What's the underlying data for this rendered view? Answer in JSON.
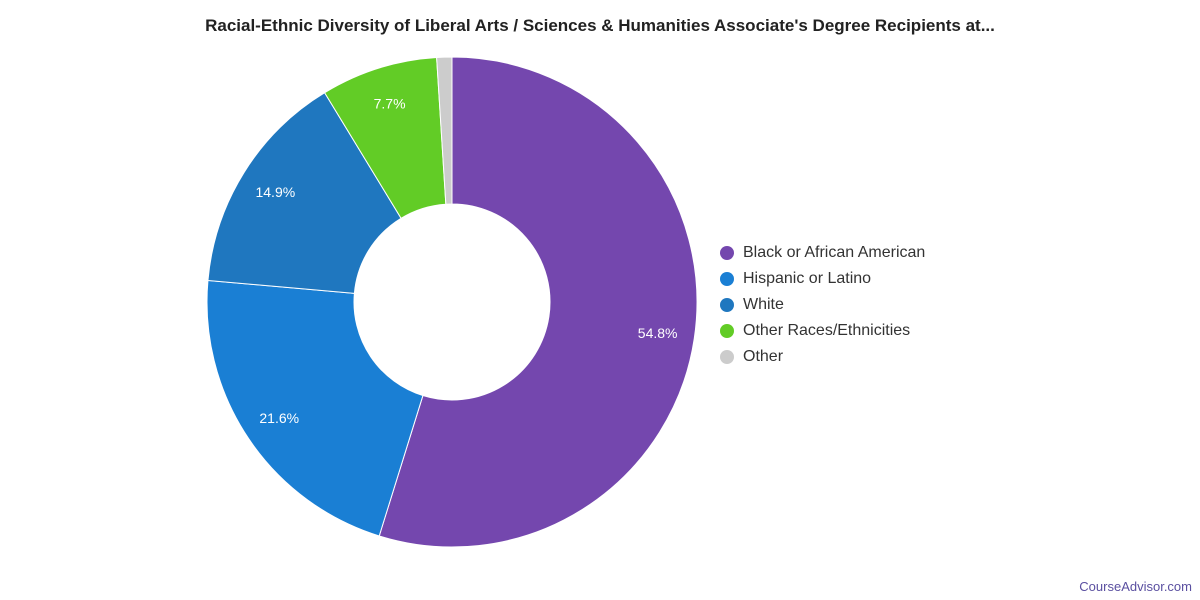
{
  "chart_data": {
    "type": "pie",
    "variant": "donut",
    "title": "Racial-Ethnic Diversity of Liberal Arts / Sciences & Humanities Associate's Degree Recipients at...",
    "legend_position": "right",
    "slices": [
      {
        "name": "Black or African American",
        "value": 54.8,
        "label": "54.8%",
        "color": "#7447ae"
      },
      {
        "name": "Hispanic or Latino",
        "value": 21.6,
        "label": "21.6%",
        "color": "#1a7fd4"
      },
      {
        "name": "White",
        "value": 14.9,
        "label": "14.9%",
        "color": "#1f77bf"
      },
      {
        "name": "Other Races/Ethnicities",
        "value": 7.7,
        "label": "7.7%",
        "color": "#62cc26"
      },
      {
        "name": "Other",
        "value": 1.0,
        "label": "",
        "color": "#cccccc"
      }
    ]
  },
  "footer": {
    "watermark": "CourseAdvisor.com"
  }
}
